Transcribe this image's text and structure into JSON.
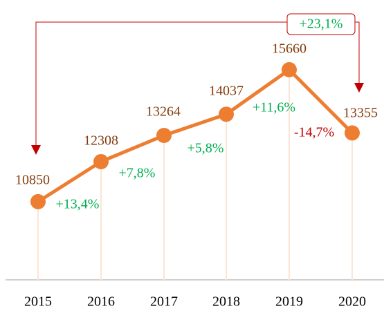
{
  "chart_data": {
    "type": "line",
    "categories": [
      "2015",
      "2016",
      "2017",
      "2018",
      "2019",
      "2020"
    ],
    "series": [
      {
        "color": "#ed7d31",
        "values": [
          10850,
          12308,
          13264,
          14037,
          15660,
          13355
        ]
      }
    ],
    "value_label_color": "#843c0c",
    "ylim": [
      8000,
      18000
    ],
    "changes": [
      "+13,4%",
      "+7,8%",
      "+5,8%",
      "+11,6%",
      "-14,7%"
    ],
    "change_colors": [
      "#00b050",
      "#00b050",
      "#00b050",
      "#00b050",
      "#c00000"
    ],
    "total_change": "+23,1%",
    "total_change_color": "#00b050",
    "arrow_color": "#c00000"
  }
}
